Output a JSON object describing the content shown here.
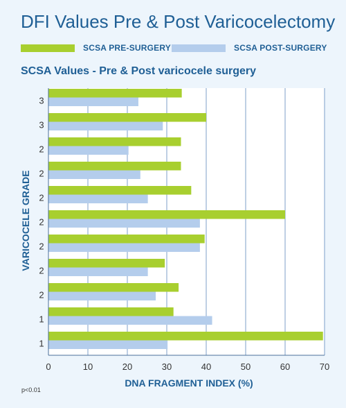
{
  "header": {
    "title": "DFI Values Pre & Post Varicocelectomy"
  },
  "legend": [
    {
      "label": "SCSA PRE-SURGERY",
      "color": "#a8cf2f"
    },
    {
      "label": "SCSA POST-SURGERY",
      "color": "#b4cdec"
    }
  ],
  "footnote": "p<0.01",
  "chart_data": {
    "type": "bar",
    "orientation": "horizontal",
    "title": "SCSA Values - Pre & Post varicocele surgery",
    "xlabel": "DNA FRAGMENT INDEX (%)",
    "ylabel": "VARICOCELE GRADE",
    "xlim": [
      0,
      70
    ],
    "xticks": [
      "0",
      "10",
      "20",
      "30",
      "40",
      "50",
      "60",
      "70"
    ],
    "grid": true,
    "legend_position": "top",
    "categories": [
      "3",
      "3",
      "2",
      "2",
      "2",
      "2",
      "2",
      "2",
      "2",
      "1",
      "1"
    ],
    "series": [
      {
        "name": "SCSA PRE-SURGERY",
        "color": "#a8cf2f",
        "values": [
          33.8,
          40,
          33.6,
          33.6,
          36.2,
          60,
          39.6,
          29.5,
          33,
          31.7,
          69.6
        ]
      },
      {
        "name": "SCSA POST-SURGERY",
        "color": "#b4cdec",
        "values": [
          22.8,
          29,
          20.3,
          23.3,
          25.2,
          38.4,
          38.4,
          25.2,
          27.2,
          41.5,
          30.2
        ]
      }
    ]
  }
}
